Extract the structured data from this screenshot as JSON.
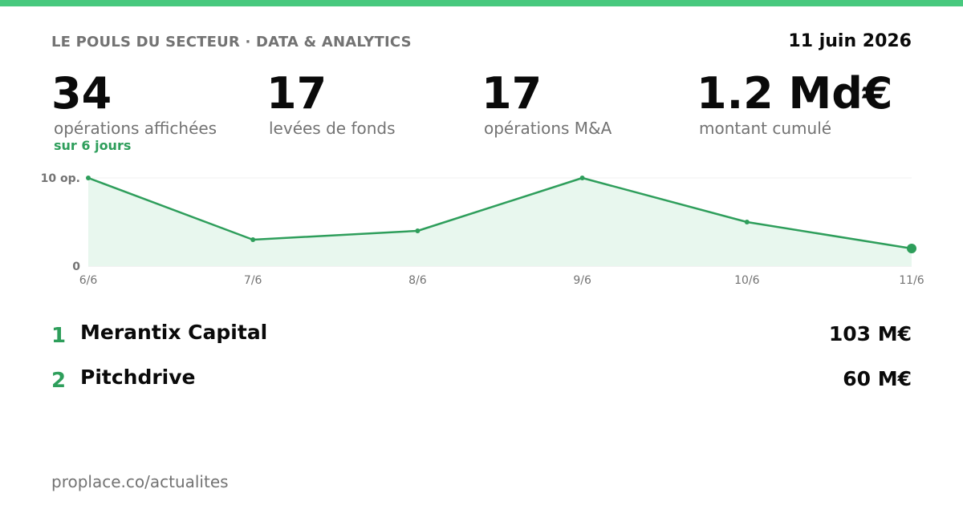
{
  "colors": {
    "accent": "#48c97e",
    "green": "#2e9e5b",
    "area_fill": "#e8f7ee",
    "muted": "#737373",
    "text": "#0a0a0a"
  },
  "header": {
    "brand": "LE POULS DU SECTEUR · DATA & ANALYTICS",
    "date": "11 juin 2026"
  },
  "kpis": [
    {
      "value": "34",
      "label": "opérations affichées",
      "sub": "sur 6 jours"
    },
    {
      "value": "17",
      "label": "levées de fonds"
    },
    {
      "value": "17",
      "label": "opérations M&A"
    },
    {
      "value": "1.2 Md€",
      "label": "montant cumulé"
    }
  ],
  "chart_data": {
    "type": "area",
    "categories": [
      "6/6",
      "7/6",
      "8/6",
      "9/6",
      "10/6",
      "11/6"
    ],
    "values": [
      10,
      3,
      4,
      10,
      5,
      2
    ],
    "ylim": [
      0,
      10
    ],
    "y_ticks": [
      {
        "value": 0,
        "label": "0"
      },
      {
        "value": 10,
        "label": "10 op."
      }
    ],
    "title": "",
    "xlabel": "",
    "ylabel": "",
    "grid": true,
    "highlight_last_point": true
  },
  "ranking": [
    {
      "rank": "1",
      "name": "Merantix Capital",
      "amount": "103 M€"
    },
    {
      "rank": "2",
      "name": "Pitchdrive",
      "amount": "60 M€"
    }
  ],
  "footer": {
    "url": "proplace.co/actualites"
  }
}
